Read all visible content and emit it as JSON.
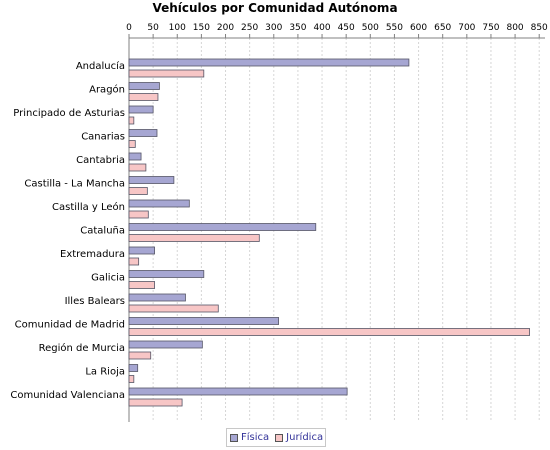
{
  "chart_data": {
    "type": "bar",
    "orientation": "horizontal",
    "title": "Vehículos por Comunidad Autónoma",
    "xlabel": "",
    "ylabel": "",
    "xlim": [
      0,
      860
    ],
    "x_ticks": [
      0,
      50,
      100,
      150,
      200,
      250,
      300,
      350,
      400,
      450,
      500,
      550,
      600,
      650,
      700,
      750,
      800,
      850
    ],
    "grid": true,
    "legend_position": "bottom",
    "categories": [
      "Andalucía",
      "Aragón",
      "Principado de Asturias",
      "Canarias",
      "Cantabria",
      "Castilla - La Mancha",
      "Castilla y León",
      "Cataluña",
      "Extremadura",
      "Galicia",
      "Illes Balears",
      "Comunidad de Madrid",
      "Región de Murcia",
      "La Rioja",
      "Comunidad Valenciana"
    ],
    "series": [
      {
        "name": "Física",
        "color": "#a6a6d2",
        "values": [
          580,
          63,
          50,
          58,
          25,
          93,
          125,
          387,
          53,
          155,
          117,
          310,
          152,
          18,
          452
        ]
      },
      {
        "name": "Jurídica",
        "color": "#f7c6c6",
        "values": [
          155,
          60,
          10,
          13,
          35,
          38,
          40,
          270,
          20,
          53,
          185,
          830,
          45,
          10,
          110
        ]
      }
    ]
  }
}
